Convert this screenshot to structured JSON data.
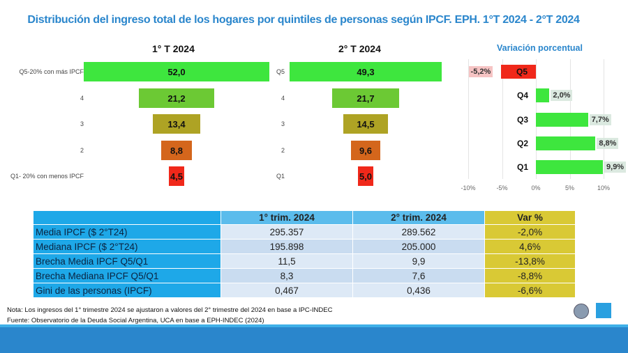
{
  "title": "Distribución del ingreso total de los hogares por quintiles de personas según IPCF. EPH. 1°T 2024 - 2°T 2024",
  "chart_data": [
    {
      "type": "bar",
      "orientation": "horizontal-funnel",
      "title": "1° T 2024",
      "categories": [
        "Q5-20% con más IPCF",
        "4",
        "3",
        "2",
        "Q1- 20% con menos IPCF"
      ],
      "values": [
        52.0,
        21.2,
        13.4,
        8.8,
        4.5
      ],
      "labels": [
        "52,0",
        "21,2",
        "13,4",
        "8,8",
        "4,5"
      ],
      "colors": [
        "#3ee63e",
        "#6cc934",
        "#aea324",
        "#d4661c",
        "#f0281a"
      ]
    },
    {
      "type": "bar",
      "orientation": "horizontal-funnel",
      "title": "2° T 2024",
      "categories": [
        "Q5",
        "4",
        "3",
        "2",
        "Q1"
      ],
      "values": [
        49.3,
        21.7,
        14.5,
        9.6,
        5.0
      ],
      "labels": [
        "49,3",
        "21,7",
        "14,5",
        "9,6",
        "5,0"
      ],
      "colors": [
        "#3ee63e",
        "#6cc934",
        "#aea324",
        "#d4661c",
        "#f0281a"
      ]
    },
    {
      "type": "bar",
      "orientation": "horizontal",
      "title": "Variación porcentual",
      "categories": [
        "Q5",
        "Q4",
        "Q3",
        "Q2",
        "Q1"
      ],
      "values": [
        -5.2,
        2.0,
        7.7,
        8.8,
        9.9
      ],
      "labels": [
        "-5,2%",
        "2,0%",
        "7,7%",
        "8,8%",
        "9,9%"
      ],
      "xlim": [
        -10,
        10
      ],
      "xticks": [
        "-10%",
        "-5%",
        "0%",
        "5%",
        "10%"
      ],
      "colors": {
        "negative": "#f0281a",
        "positive": "#3ee63e"
      }
    }
  ],
  "table": {
    "headers": [
      "",
      "1° trim. 2024",
      "2° trim. 2024",
      "Var %"
    ],
    "rows": [
      [
        "Media IPCF ($ 2°T24)",
        "295.357",
        "289.562",
        "-2,0%"
      ],
      [
        "Mediana IPCF ($ 2°T24)",
        "195.898",
        "205.000",
        "4,6%"
      ],
      [
        "Brecha Media IPCF Q5/Q1",
        "11,5",
        "9,9",
        "-13,8%"
      ],
      [
        "Brecha Mediana IPCF Q5/Q1",
        "8,3",
        "7,6",
        "-8,8%"
      ],
      [
        "Gini de las personas (IPCF)",
        "0,467",
        "0,436",
        "-6,6%"
      ]
    ]
  },
  "notes": {
    "nota": "Nota: Los ingresos del 1°   trimestre 2024  se ajustaron a valores del 2°  trimestre del 2024 en base a IPC-INDEC",
    "fuente": "Fuente: Observatorio de la Deuda Social Argentina, UCA en base a EPH-INDEC (2024)"
  },
  "logos": {
    "odsa": "ODSA"
  }
}
